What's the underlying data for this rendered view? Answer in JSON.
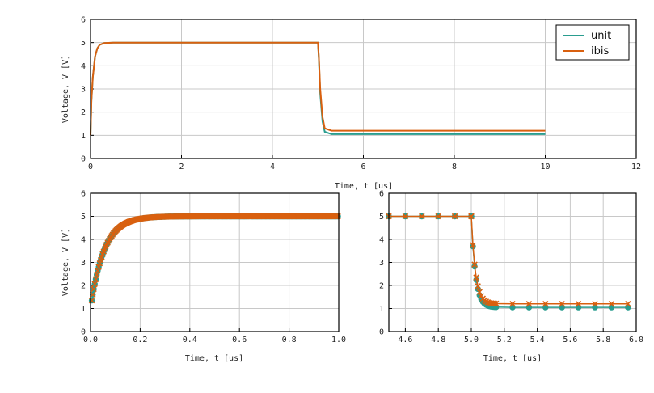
{
  "colors": {
    "unit": "#2a9d8f",
    "ibis": "#d9600f",
    "grid": "#c8c8c8",
    "axis": "#000000"
  },
  "chart_data": [
    {
      "type": "line",
      "xlabel": "Time, t [us]",
      "ylabel": "Voltage, V [V]",
      "xlim": [
        0,
        12
      ],
      "ylim": [
        0,
        6
      ],
      "xticks": [
        "0",
        "2",
        "4",
        "6",
        "8",
        "10",
        "12"
      ],
      "yticks": [
        "0",
        "1",
        "2",
        "3",
        "4",
        "5",
        "6"
      ],
      "grid": true,
      "legend": "top-right",
      "series": [
        {
          "name": "unit",
          "color": "#2a9d8f",
          "marker": "none",
          "x": [
            0,
            0.02,
            0.05,
            0.1,
            0.15,
            0.2,
            0.3,
            0.5,
            1,
            2,
            3,
            4,
            5.0,
            5.02,
            5.05,
            5.1,
            5.15,
            5.3,
            6,
            8,
            10
          ],
          "y": [
            1.0,
            2.5,
            3.5,
            4.4,
            4.75,
            4.9,
            4.98,
            5.0,
            5.0,
            5.0,
            5.0,
            5.0,
            5.0,
            4.3,
            2.8,
            1.6,
            1.15,
            1.05,
            1.05,
            1.05,
            1.05
          ]
        },
        {
          "name": "ibis",
          "color": "#d9600f",
          "marker": "none",
          "x": [
            0,
            0.02,
            0.05,
            0.1,
            0.15,
            0.2,
            0.3,
            0.5,
            1,
            2,
            3,
            4,
            5.0,
            5.02,
            5.05,
            5.1,
            5.15,
            5.3,
            6,
            8,
            10
          ],
          "y": [
            1.0,
            2.5,
            3.5,
            4.4,
            4.75,
            4.9,
            4.98,
            5.0,
            5.0,
            5.0,
            5.0,
            5.0,
            5.0,
            4.4,
            3.0,
            1.8,
            1.3,
            1.2,
            1.2,
            1.2,
            1.2
          ]
        }
      ]
    },
    {
      "type": "scatter",
      "xlabel": "Time, t [us]",
      "ylabel": "Voltage, V [V]",
      "xlim": [
        0,
        1
      ],
      "ylim": [
        0,
        6
      ],
      "xticks": [
        "0.0",
        "0.2",
        "0.4",
        "0.6",
        "0.8",
        "1.0"
      ],
      "yticks": [
        "0",
        "1",
        "2",
        "3",
        "4",
        "5",
        "6"
      ],
      "grid": true,
      "series": [
        {
          "name": "unit",
          "color": "#2a9d8f",
          "marker": "circle",
          "tau": 0.055,
          "v0": 1.0,
          "v1": 5.0,
          "step": 0.004
        },
        {
          "name": "ibis",
          "color": "#d9600f",
          "marker": "x",
          "tau": 0.055,
          "v0": 1.0,
          "v1": 5.0,
          "step": 0.004
        }
      ]
    },
    {
      "type": "scatter",
      "xlabel": "Time, t [us]",
      "ylabel": "",
      "xlim": [
        4.5,
        6.0
      ],
      "ylim": [
        0,
        6
      ],
      "xticks": [
        "4.6",
        "4.8",
        "5.0",
        "5.2",
        "5.4",
        "5.6",
        "5.8",
        "6.0"
      ],
      "yticks": [
        "0",
        "1",
        "2",
        "3",
        "4",
        "5",
        "6"
      ],
      "grid": true,
      "series": [
        {
          "name": "unit",
          "color": "#2a9d8f",
          "marker": "circle",
          "t0": 5.0,
          "tau": 0.025,
          "v0": 5.0,
          "v1": 1.05,
          "step": 0.01,
          "sparse_step": 0.1
        },
        {
          "name": "ibis",
          "color": "#d9600f",
          "marker": "x",
          "t0": 5.0,
          "tau": 0.025,
          "v0": 5.0,
          "v1": 1.2,
          "step": 0.01,
          "sparse_step": 0.1
        }
      ]
    }
  ]
}
